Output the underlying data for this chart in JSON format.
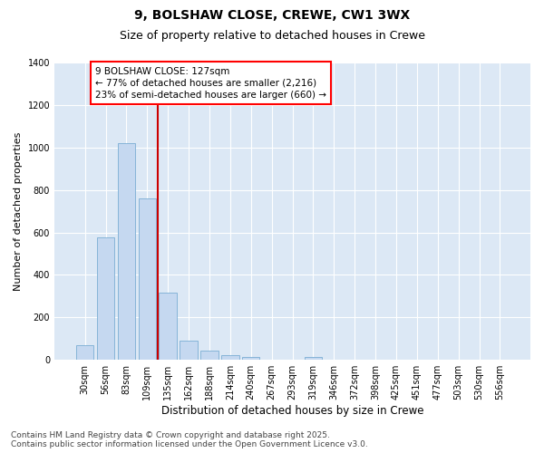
{
  "title1": "9, BOLSHAW CLOSE, CREWE, CW1 3WX",
  "title2": "Size of property relative to detached houses in Crewe",
  "xlabel": "Distribution of detached houses by size in Crewe",
  "ylabel": "Number of detached properties",
  "categories": [
    "30sqm",
    "56sqm",
    "83sqm",
    "109sqm",
    "135sqm",
    "162sqm",
    "188sqm",
    "214sqm",
    "240sqm",
    "267sqm",
    "293sqm",
    "319sqm",
    "346sqm",
    "372sqm",
    "398sqm",
    "425sqm",
    "451sqm",
    "477sqm",
    "503sqm",
    "530sqm",
    "556sqm"
  ],
  "values": [
    70,
    578,
    1020,
    760,
    315,
    90,
    42,
    22,
    13,
    0,
    0,
    13,
    0,
    0,
    0,
    0,
    0,
    0,
    0,
    0,
    0
  ],
  "bar_color": "#c5d8f0",
  "bar_edge_color": "#7aadd4",
  "vline_position": 3.5,
  "vline_color": "#cc0000",
  "annotation_text": "9 BOLSHAW CLOSE: 127sqm\n← 77% of detached houses are smaller (2,216)\n23% of semi-detached houses are larger (660) →",
  "ylim_max": 1400,
  "yticks": [
    0,
    200,
    400,
    600,
    800,
    1000,
    1200,
    1400
  ],
  "plot_bg_color": "#dce8f5",
  "fig_bg_color": "#ffffff",
  "footer": "Contains HM Land Registry data © Crown copyright and database right 2025.\nContains public sector information licensed under the Open Government Licence v3.0.",
  "title_fontsize": 10,
  "subtitle_fontsize": 9,
  "tick_fontsize": 7,
  "ylabel_fontsize": 8,
  "xlabel_fontsize": 8.5,
  "annotation_fontsize": 7.5,
  "footer_fontsize": 6.5
}
